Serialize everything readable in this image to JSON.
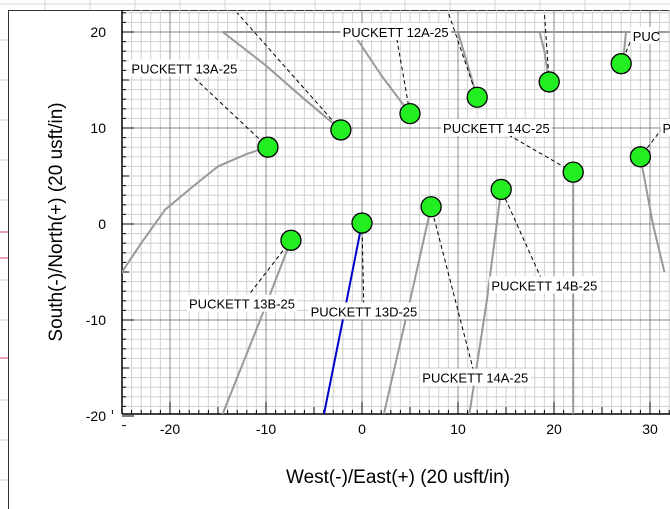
{
  "chart_data": {
    "type": "scatter",
    "title": "",
    "xlabel": "West(-)/East(+) (20 usft/in)",
    "ylabel": "South(-)/North(+) (20 usft/in)",
    "xlim": [
      -26,
      33
    ],
    "ylim": [
      -21,
      22
    ],
    "xticks": [
      -20,
      -10,
      0,
      10,
      20,
      30
    ],
    "yticks": [
      -20,
      -10,
      0,
      10,
      20
    ],
    "grid": true,
    "colors": {
      "marker_fill": "#22ee22",
      "marker_edge": "#000000",
      "trajectory": "#999999",
      "active_trajectory": "#0000cc",
      "gridline": "#888888",
      "minor_gridline": "#cfcfcf",
      "leader_line": "#000000"
    },
    "wells": [
      {
        "x": -9.8,
        "y": 8.0
      },
      {
        "x": -2.2,
        "y": 9.8
      },
      {
        "x": 5.0,
        "y": 11.5
      },
      {
        "x": 12.0,
        "y": 13.2
      },
      {
        "x": 19.5,
        "y": 14.8
      },
      {
        "x": 27.0,
        "y": 16.7
      },
      {
        "x": 29.0,
        "y": 7.0
      },
      {
        "x": 22.0,
        "y": 5.4
      },
      {
        "x": 14.5,
        "y": 3.6
      },
      {
        "x": 7.2,
        "y": 1.8
      },
      {
        "x": 0.0,
        "y": 0.1
      },
      {
        "x": -7.4,
        "y": -1.7
      }
    ],
    "trajectories": [
      {
        "active": false,
        "points": [
          [
            -9.8,
            8.0
          ],
          [
            -12.0,
            7.3
          ],
          [
            -15.0,
            6.0
          ],
          [
            -17.5,
            4.0
          ],
          [
            -20.5,
            1.5
          ],
          [
            -23.0,
            -2.0
          ],
          [
            -26.0,
            -6.5
          ]
        ]
      },
      {
        "active": false,
        "points": [
          [
            -2.2,
            9.8
          ],
          [
            -6.0,
            13.0
          ],
          [
            -10.0,
            16.5
          ],
          [
            -14.5,
            20.0
          ]
        ]
      },
      {
        "active": false,
        "points": [
          [
            5.0,
            11.5
          ],
          [
            2.0,
            15.5
          ],
          [
            -1.0,
            20.0
          ]
        ]
      },
      {
        "active": false,
        "points": [
          [
            12.0,
            13.2
          ],
          [
            10.0,
            20.0
          ]
        ]
      },
      {
        "active": false,
        "points": [
          [
            -14.5,
            20.0
          ],
          [
            32.0,
            20.0
          ]
        ]
      },
      {
        "active": false,
        "points": [
          [
            19.5,
            14.8
          ],
          [
            19.0,
            18.0
          ],
          [
            18.5,
            20.0
          ]
        ]
      },
      {
        "active": false,
        "points": [
          [
            27.0,
            16.7
          ],
          [
            27.3,
            18.0
          ],
          [
            27.5,
            20.0
          ]
        ]
      },
      {
        "active": false,
        "points": [
          [
            29.0,
            7.0
          ],
          [
            30.3,
            0.0
          ],
          [
            31.5,
            -5.0
          ]
        ]
      },
      {
        "active": false,
        "points": [
          [
            22.0,
            5.4
          ],
          [
            22.0,
            -21.0
          ]
        ]
      },
      {
        "active": false,
        "points": [
          [
            14.5,
            3.6
          ],
          [
            13.0,
            -8.0
          ],
          [
            11.0,
            -21.0
          ]
        ]
      },
      {
        "active": false,
        "points": [
          [
            7.2,
            1.8
          ],
          [
            5.0,
            -8.0
          ],
          [
            2.0,
            -21.0
          ]
        ]
      },
      {
        "active": true,
        "points": [
          [
            0.0,
            0.1
          ],
          [
            -2.0,
            -10.0
          ],
          [
            -4.2,
            -21.0
          ]
        ]
      },
      {
        "active": false,
        "points": [
          [
            -7.4,
            -1.7
          ],
          [
            -11.0,
            -11.0
          ],
          [
            -15.0,
            -21.0
          ]
        ]
      }
    ],
    "annotations": [
      {
        "text": "PUCKETT 12A-25",
        "x": 3.5,
        "y": 20.0,
        "anchor": "middle",
        "target": [
          5.0,
          11.5
        ]
      },
      {
        "text": "PUCKETT 13A-25",
        "x": -18.5,
        "y": 16.2,
        "anchor": "middle",
        "target": [
          -9.8,
          8.0
        ]
      },
      {
        "text": "PUCKETT 14C-25",
        "x": 14.0,
        "y": 10.0,
        "anchor": "middle",
        "target": [
          22.0,
          5.4
        ]
      },
      {
        "text": "PUC",
        "x": 28.2,
        "y": 19.6,
        "anchor": "start",
        "target": [
          27.0,
          16.7
        ]
      },
      {
        "text": "P",
        "x": 31.3,
        "y": 10.0,
        "anchor": "start",
        "target": [
          29.0,
          7.0
        ]
      },
      {
        "text": "PUCKETT 14B-25",
        "x": 19.0,
        "y": -6.4,
        "anchor": "middle",
        "target": [
          14.5,
          3.6
        ]
      },
      {
        "text": "PUCKETT 13B-25",
        "x": -12.5,
        "y": -8.3,
        "anchor": "middle",
        "target": [
          -7.4,
          -1.7
        ]
      },
      {
        "text": "PUCKETT 13D-25",
        "x": 0.2,
        "y": -9.1,
        "anchor": "middle",
        "target": [
          0.0,
          0.1
        ]
      },
      {
        "text": "PUCKETT 14A-25",
        "x": 11.8,
        "y": -16.0,
        "anchor": "middle",
        "target": [
          7.2,
          1.8
        ]
      }
    ],
    "extra_leaders": [
      [
        [
          -2.2,
          9.8
        ],
        [
          -13.0,
          22.0
        ]
      ],
      [
        [
          12.0,
          13.2
        ],
        [
          9.0,
          22.0
        ]
      ],
      [
        [
          19.5,
          14.8
        ],
        [
          19.0,
          22.0
        ]
      ]
    ]
  }
}
